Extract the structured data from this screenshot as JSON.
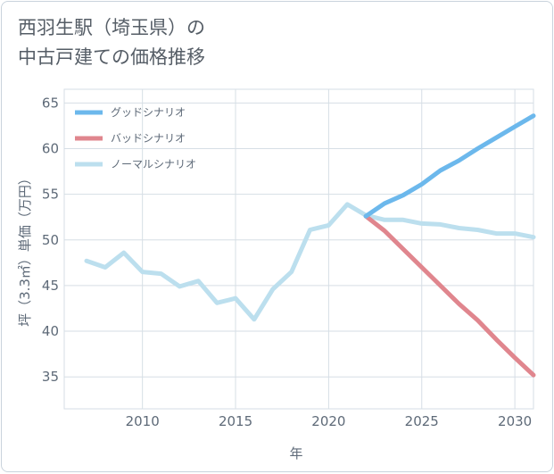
{
  "chart_title": {
    "line1": "西羽生駅（埼玉県）の",
    "line2": "中古戸建ての価格推移"
  },
  "chart_data": {
    "type": "line",
    "title": "西羽生駅（埼玉県）の中古戸建ての価格推移",
    "xlabel": "年",
    "ylabel": "坪（3.3㎡）単価（万円）",
    "xlim": [
      2005.8,
      2031
    ],
    "ylim": [
      31.5,
      66.5
    ],
    "xticks": [
      2010,
      2015,
      2020,
      2025,
      2030
    ],
    "yticks": [
      35,
      40,
      45,
      50,
      55,
      60,
      65
    ],
    "grid": true,
    "legend_position": "top-left",
    "series": [
      {
        "key": "good",
        "name": "グッドシナリオ",
        "color": "#6cb8ec",
        "x": [
          2022,
          2023,
          2024,
          2025,
          2026,
          2027,
          2028,
          2029,
          2030,
          2031
        ],
        "y": [
          52.6,
          54.0,
          54.9,
          56.1,
          57.6,
          58.7,
          60.0,
          61.2,
          62.4,
          63.6
        ]
      },
      {
        "key": "bad",
        "name": "バッドシナリオ",
        "color": "#e0868e",
        "x": [
          2022,
          2023,
          2024,
          2025,
          2026,
          2027,
          2028,
          2029,
          2030,
          2031
        ],
        "y": [
          52.6,
          51.0,
          49.0,
          47.0,
          45.0,
          43.0,
          41.2,
          39.1,
          37.1,
          35.2
        ]
      },
      {
        "key": "normal",
        "name": "ノーマルシナリオ",
        "color": "#bcdfee",
        "x": [
          2007,
          2008,
          2009,
          2010,
          2011,
          2012,
          2013,
          2014,
          2015,
          2016,
          2017,
          2018,
          2019,
          2020,
          2021,
          2022,
          2023,
          2024,
          2025,
          2026,
          2027,
          2028,
          2029,
          2030,
          2031
        ],
        "y": [
          47.7,
          47.0,
          48.6,
          46.5,
          46.3,
          44.9,
          45.5,
          43.1,
          43.6,
          41.3,
          44.6,
          46.5,
          51.1,
          51.6,
          53.9,
          52.7,
          52.2,
          52.2,
          51.8,
          51.7,
          51.3,
          51.1,
          50.7,
          50.7,
          50.3
        ]
      }
    ]
  }
}
